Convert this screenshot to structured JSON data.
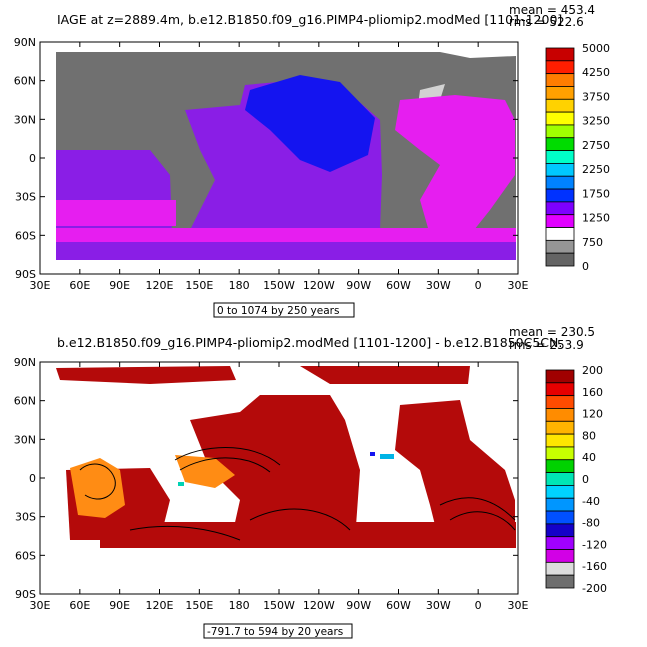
{
  "panel1": {
    "title": "IAGE at z=2889.4m, b.e12.B1850.f09_g16.PIMP4-pliomip2.modMed [1101-1200]",
    "mean_text": "mean = 453.4",
    "rms_text": "rms = 522.6",
    "range_text": "0 to 1074 by 250 years",
    "colorbar_labels": [
      "5000",
      "4250",
      "3750",
      "3250",
      "2750",
      "2250",
      "1750",
      "1250",
      "750",
      "0"
    ],
    "colorbar_colors": [
      "#c80000",
      "#ff1e00",
      "#ff7d00",
      "#ffa000",
      "#ffd200",
      "#ffff00",
      "#a0ff00",
      "#00dc00",
      "#00ffc8",
      "#00c8ff",
      "#0082ff",
      "#0032ff",
      "#7d00ff",
      "#e100ff",
      "#ffffff",
      "#969696",
      "#646464"
    ]
  },
  "panel2": {
    "title": "b.e12.B1850.f09_g16.PIMP4-pliomip2.modMed [1101-1200] - b.e12.B1850C5CN.",
    "mean_text": "mean = 230.5",
    "rms_text": "rms = 253.9",
    "range_text": "-791.7 to 594 by 20 years",
    "colorbar_labels": [
      "200",
      "160",
      "120",
      "80",
      "40",
      "0",
      "-40",
      "-80",
      "-120",
      "-160",
      "-200"
    ],
    "colorbar_colors": [
      "#a00000",
      "#e60000",
      "#ff4b00",
      "#ff8c00",
      "#ffb400",
      "#ffe600",
      "#c8ff00",
      "#00d200",
      "#00e6b4",
      "#00d2ff",
      "#0096ff",
      "#0050ff",
      "#1400c8",
      "#a000ff",
      "#d200e6",
      "#dcdcdc",
      "#6e6e6e"
    ]
  },
  "axes": {
    "lat_labels": [
      "90N",
      "60N",
      "30N",
      "0",
      "30S",
      "60S",
      "90S"
    ],
    "lon_labels": [
      "30E",
      "60E",
      "90E",
      "120E",
      "150E",
      "180",
      "150W",
      "120W",
      "90W",
      "60W",
      "30W",
      "0",
      "30E"
    ]
  },
  "colors": {
    "land": "#707070",
    "ocean_purple": "#8a1ee6",
    "ocean_magenta": "#e61ef0",
    "ocean_blue": "#1414f0",
    "diff_red": "#b40a0a",
    "diff_orange": "#ff8c14"
  }
}
